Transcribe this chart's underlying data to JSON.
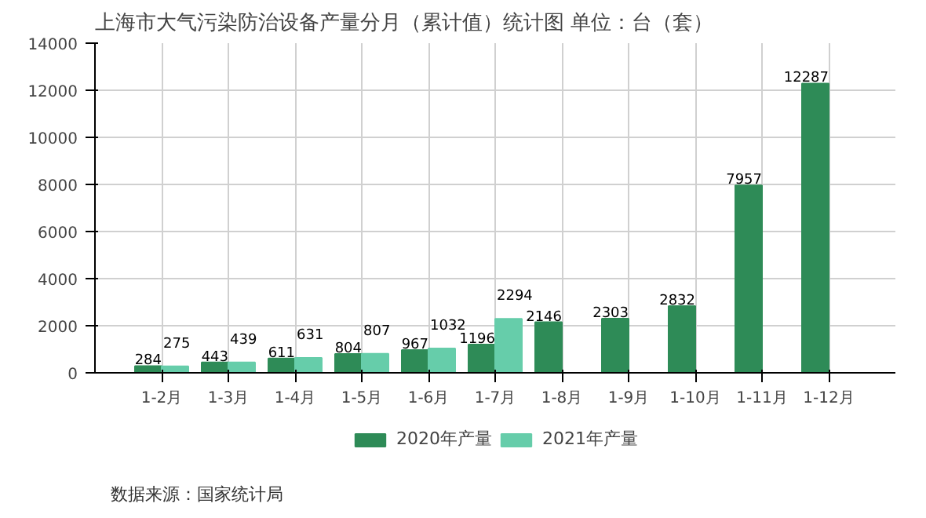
{
  "chart_data": {
    "type": "bar",
    "title": "上海市大气污染防治设备产量分月（累计值）统计图 单位：台（套）",
    "categories": [
      "1-2月",
      "1-3月",
      "1-4月",
      "1-5月",
      "1-6月",
      "1-7月",
      "1-8月",
      "1-9月",
      "1-10月",
      "1-11月",
      "1-12月"
    ],
    "series": [
      {
        "name": "2020年产量",
        "color": "#2e8b57",
        "values": [
          284,
          443,
          611,
          804,
          967,
          1196,
          2146,
          2303,
          2832,
          7957,
          12287
        ]
      },
      {
        "name": "2021年产量",
        "color": "#66cdaa",
        "values": [
          275,
          439,
          631,
          807,
          1032,
          2294,
          null,
          null,
          null,
          null,
          null
        ]
      }
    ],
    "ylim": [
      0,
      14000
    ],
    "yticks": [
      0,
      2000,
      4000,
      6000,
      8000,
      10000,
      12000,
      14000
    ],
    "grid": true,
    "legend": "bottom",
    "data_labels": true,
    "annotations": [
      "数据来源：国家统计局"
    ]
  }
}
